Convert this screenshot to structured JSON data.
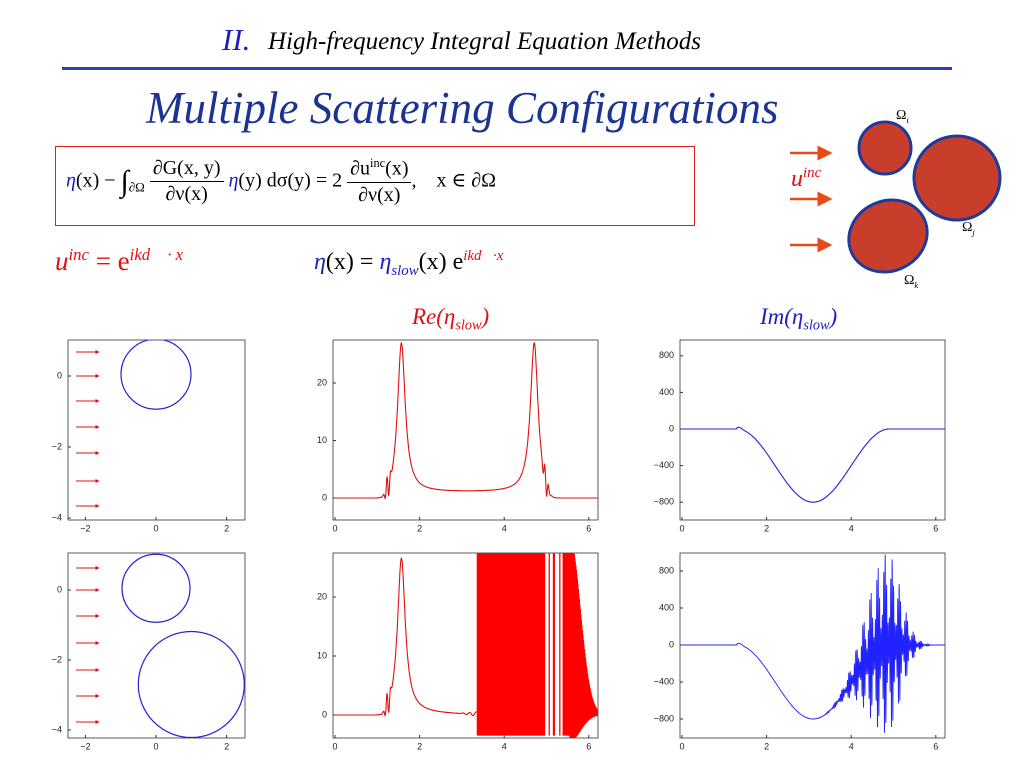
{
  "header": {
    "section": "II.",
    "title": "High-frequency Integral Equation Methods"
  },
  "title": "Multiple Scattering Configurations",
  "integral_equation": {
    "eta": "η",
    "t1": "(x) − ",
    "integral": "∫",
    "domain": "∂Ω",
    "num1": "∂G(x, y)",
    "den1": "∂ν(x)",
    "eta2": "η",
    "t2": "(y) dσ(y) = 2",
    "num2_base": "∂u",
    "num2_sup": "inc",
    "num2_end": "(x)",
    "den2": "∂ν(x)",
    "t3": ",    x ∈ ∂Ω"
  },
  "incident_wave": {
    "base": "u",
    "sup": "inc",
    "eq": " = e",
    "exp": "ikd⃗ · x"
  },
  "ansatz": {
    "eta": "η",
    "t1": "(x) = ",
    "slow": "η",
    "slow_sub": "slow",
    "t2": "(x) e",
    "exp": "ikd⃗·x"
  },
  "diagram": {
    "wave": {
      "base": "u",
      "sup": "inc"
    },
    "obstacles": [
      {
        "base": "Ω",
        "sub": "i"
      },
      {
        "base": "Ω",
        "sub": "j"
      },
      {
        "base": "Ω",
        "sub": "k"
      }
    ]
  },
  "plot_titles": {
    "re": {
      "base": "Re(η",
      "sub": "slow",
      "end": ")"
    },
    "im": {
      "base": "Im(η",
      "sub": "slow",
      "end": ")"
    }
  },
  "panels": [
    {
      "xticks": [
        {
          "value": -2,
          "label": "−2"
        },
        0,
        2
      ],
      "yticks": [
        0,
        {
          "value": -2,
          "label": "−2"
        },
        {
          "value": -4,
          "label": "−4"
        }
      ]
    },
    {
      "xticks": [
        0,
        2,
        4,
        6
      ],
      "yticks": [
        0,
        10,
        20
      ]
    },
    {
      "xticks": [
        0,
        2,
        4,
        6
      ],
      "yticks": [
        800,
        400,
        0,
        {
          "value": -400,
          "label": "−400"
        },
        {
          "value": -800,
          "label": "−800"
        }
      ]
    },
    {
      "xticks": [
        {
          "value": -2,
          "label": "−2"
        },
        0,
        2
      ],
      "yticks": [
        0,
        {
          "value": -2,
          "label": "−2"
        },
        {
          "value": -4,
          "label": "−4"
        }
      ]
    },
    {
      "xticks": [
        0,
        2,
        4,
        6
      ],
      "yticks": [
        0,
        10,
        20
      ]
    },
    {
      "xticks": [
        0,
        2,
        4,
        6
      ],
      "yticks": [
        800,
        400,
        0,
        {
          "value": -400,
          "label": "−400"
        },
        {
          "value": -800,
          "label": "−800"
        }
      ]
    }
  ]
}
